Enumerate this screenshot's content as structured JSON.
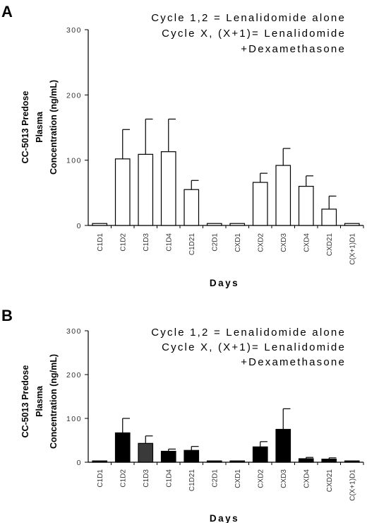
{
  "chart_data": [
    {
      "type": "bar",
      "panel": "A",
      "annotation": [
        "Cycle 1,2 = Lenalidomide alone",
        "Cycle X, (X+1)= Lenalidomide",
        "+Dexamethasone"
      ],
      "ylabel": [
        "CC-5013 Predose",
        "Plasma",
        "Concentration (ng/mL)"
      ],
      "xlabel": "Days",
      "ylim": [
        0,
        300
      ],
      "yticks": [
        "0",
        "100",
        "200",
        "300"
      ],
      "categories": [
        "C1D1",
        "C1D2",
        "C1D3",
        "C1D4",
        "C1D21",
        "C2D1",
        "CXD1",
        "CXD2",
        "CXD3",
        "CXD4",
        "CXD21",
        "C(X+1)D1"
      ],
      "series": [
        {
          "fill": "#ffffff",
          "values": [
            3,
            102,
            109,
            113,
            55,
            3,
            3,
            66,
            92,
            60,
            25,
            3
          ],
          "errors": [
            0,
            45,
            54,
            50,
            14,
            0,
            0,
            14,
            26,
            16,
            20,
            0
          ]
        }
      ]
    },
    {
      "type": "bar",
      "panel": "B",
      "annotation": [
        "Cycle 1,2 = Lenalidomide alone",
        "Cycle X, (X+1)= Lenalidomide",
        "+Dexamethasone"
      ],
      "ylabel": [
        "CC-5013 Predose",
        "Plasma",
        "Concentration (ng/mL)"
      ],
      "xlabel": "Days",
      "ylim": [
        0,
        300
      ],
      "yticks": [
        "0",
        "100",
        "200",
        "300"
      ],
      "categories": [
        "C1D1",
        "C1D2",
        "C1D3",
        "C1D4",
        "C1D21",
        "C2D1",
        "CXD1",
        "CXD2",
        "CXD3",
        "CXD4",
        "CXD21",
        "C(X+1)D1"
      ],
      "series": [
        {
          "fill": "#000000",
          "bar_colors": [
            "#000000",
            "#000000",
            "#3a3a3a",
            "#000000",
            "#000000",
            "#000000",
            "#000000",
            "#000000",
            "#000000",
            "#000000",
            "#000000",
            "#000000"
          ],
          "values": [
            3,
            67,
            43,
            25,
            27,
            3,
            3,
            35,
            75,
            8,
            7,
            3
          ],
          "errors": [
            0,
            33,
            17,
            5,
            9,
            0,
            0,
            12,
            47,
            3,
            3,
            0
          ]
        }
      ]
    }
  ]
}
